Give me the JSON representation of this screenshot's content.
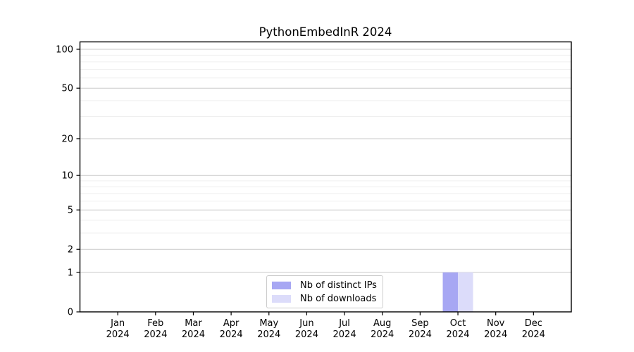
{
  "title": "PythonEmbedInR 2024",
  "chart_data": {
    "type": "bar",
    "title": "PythonEmbedInR 2024",
    "categories": [
      "Jan",
      "Feb",
      "Mar",
      "Apr",
      "May",
      "Jun",
      "Jul",
      "Aug",
      "Sep",
      "Oct",
      "Nov",
      "Dec"
    ],
    "category_year": "2024",
    "series": [
      {
        "name": "Nb of distinct IPs",
        "color": "#a7a7f3",
        "values": [
          0,
          0,
          0,
          0,
          0,
          0,
          0,
          0,
          0,
          1,
          0,
          0
        ]
      },
      {
        "name": "Nb of downloads",
        "color": "#dcdcfa",
        "values": [
          0,
          0,
          0,
          0,
          0,
          0,
          0,
          0,
          0,
          1,
          0,
          0
        ]
      }
    ],
    "xlabel": "",
    "ylabel": "",
    "yscale": "log1p",
    "ylim": [
      0,
      113
    ],
    "ytick_values": [
      0,
      1,
      2,
      5,
      10,
      20,
      50,
      100
    ],
    "ytick_labels": [
      "0",
      "1",
      "2",
      "5",
      "10",
      "20",
      "50",
      "100"
    ],
    "minor_gridline_values": [
      3,
      4,
      6,
      7,
      8,
      9,
      30,
      40,
      60,
      70,
      80,
      90
    ],
    "grid": "horizontal",
    "legend_position": "bottom-center-inside"
  },
  "legend": {
    "items": [
      {
        "label": "Nb of distinct IPs",
        "color": "#a7a7f3"
      },
      {
        "label": "Nb of downloads",
        "color": "#dcdcfa"
      }
    ]
  },
  "colors": {
    "spine": "#000000",
    "major_grid": "#c9c9c9",
    "minor_grid": "#efefef",
    "text": "#000000",
    "legend_border": "#cccccc",
    "background": "#ffffff"
  }
}
